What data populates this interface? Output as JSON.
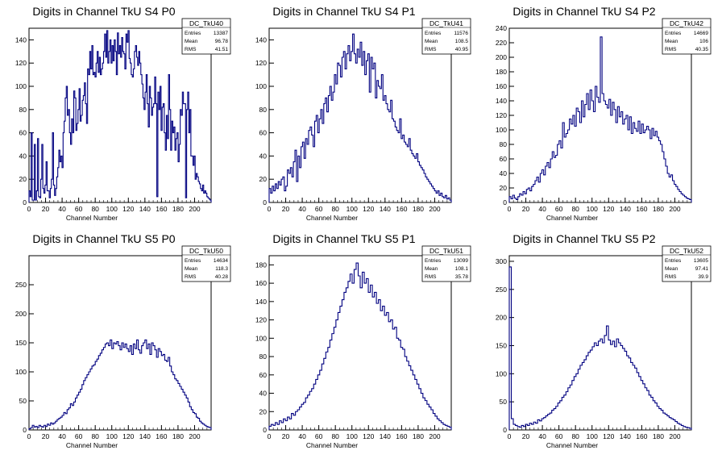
{
  "colors": {
    "histogram": "#000080",
    "axis": "#000000",
    "background": "#ffffff"
  },
  "chart_data": [
    {
      "type": "histogram",
      "title": "Digits in Channel TkU S4 P0",
      "xlabel": "Channel Number",
      "xlim": [
        0,
        220
      ],
      "ylim": [
        0,
        150
      ],
      "x_ticks": [
        0,
        20,
        40,
        60,
        80,
        100,
        120,
        140,
        160,
        180,
        200
      ],
      "y_ticks": [
        0,
        20,
        40,
        60,
        80,
        100,
        120,
        140
      ],
      "stats": {
        "name": "DC_TkU40",
        "entries": "13387",
        "mean": "96.78",
        "rms": "41.51"
      },
      "values": [
        10,
        5,
        60,
        2,
        2,
        50,
        2,
        10,
        55,
        5,
        4,
        20,
        50,
        12,
        8,
        15,
        35,
        10,
        10,
        4,
        12,
        20,
        60,
        15,
        6,
        12,
        22,
        30,
        45,
        35,
        40,
        30,
        60,
        70,
        90,
        100,
        75,
        80,
        60,
        50,
        72,
        60,
        96,
        90,
        62,
        68,
        80,
        98,
        70,
        75,
        88,
        92,
        103,
        85,
        68,
        115,
        110,
        130,
        115,
        135,
        110,
        112,
        108,
        120,
        130,
        112,
        125,
        110,
        115,
        120,
        130,
        145,
        125,
        148,
        120,
        130,
        140,
        120,
        135,
        122,
        140,
        130,
        110,
        146,
        128,
        135,
        125,
        142,
        130,
        128,
        115,
        145,
        138,
        148,
        124,
        120,
        110,
        108,
        115,
        130,
        135,
        125,
        118,
        130,
        120,
        110,
        102,
        90,
        80,
        95,
        110,
        85,
        65,
        100,
        90,
        75,
        82,
        85,
        108,
        85,
        5,
        95,
        80,
        100,
        62,
        82,
        85,
        60,
        45,
        75,
        55,
        110,
        80,
        45,
        70,
        60,
        65,
        45,
        55,
        60,
        35,
        50,
        80,
        75,
        95,
        85,
        85,
        4,
        80,
        95,
        60,
        80,
        40,
        40,
        32,
        40,
        20,
        25,
        22,
        18,
        16,
        12,
        10,
        15,
        8,
        10,
        8,
        5,
        4,
        3,
        2
      ]
    },
    {
      "type": "histogram",
      "title": "Digits in Channel TkU S4 P1",
      "xlabel": "Channel Number",
      "xlim": [
        0,
        220
      ],
      "ylim": [
        0,
        150
      ],
      "x_ticks": [
        0,
        20,
        40,
        60,
        80,
        100,
        120,
        140,
        160,
        180,
        200
      ],
      "y_ticks": [
        0,
        20,
        40,
        60,
        80,
        100,
        120,
        140
      ],
      "stats": {
        "name": "DC_TkU41",
        "entries": "11576",
        "mean": "108.5",
        "rms": "40.95"
      },
      "values": [
        12,
        8,
        14,
        10,
        16,
        12,
        18,
        15,
        20,
        22,
        10,
        14,
        28,
        25,
        30,
        22,
        35,
        45,
        18,
        40,
        30,
        48,
        52,
        38,
        55,
        50,
        62,
        65,
        58,
        48,
        70,
        75,
        60,
        72,
        80,
        68,
        85,
        90,
        78,
        92,
        100,
        88,
        95,
        110,
        102,
        120,
        118,
        108,
        125,
        130,
        115,
        128,
        135,
        122,
        130,
        145,
        128,
        120,
        132,
        125,
        138,
        118,
        130,
        110,
        122,
        128,
        95,
        125,
        115,
        120,
        90,
        105,
        100,
        98,
        110,
        88,
        92,
        85,
        80,
        78,
        88,
        72,
        70,
        65,
        62,
        60,
        72,
        55,
        58,
        52,
        50,
        48,
        55,
        45,
        42,
        40,
        38,
        42,
        35,
        32,
        30,
        28,
        25,
        22,
        20,
        18,
        16,
        14,
        12,
        10,
        8,
        10,
        6,
        8,
        5,
        4,
        6,
        3,
        4,
        2
      ]
    },
    {
      "type": "histogram",
      "title": "Digits in Channel TkU S4 P2",
      "xlabel": "Channel Number",
      "xlim": [
        0,
        220
      ],
      "ylim": [
        0,
        240
      ],
      "x_ticks": [
        0,
        20,
        40,
        60,
        80,
        100,
        120,
        140,
        160,
        180,
        200
      ],
      "y_ticks": [
        0,
        20,
        40,
        60,
        80,
        100,
        120,
        140,
        160,
        180,
        200,
        220,
        240
      ],
      "stats": {
        "name": "DC_TkU42",
        "entries": "14669",
        "mean": "106",
        "rms": "40.35"
      },
      "values": [
        8,
        5,
        10,
        6,
        4,
        8,
        12,
        10,
        15,
        12,
        18,
        20,
        16,
        22,
        25,
        30,
        35,
        28,
        40,
        45,
        38,
        50,
        55,
        48,
        60,
        70,
        62,
        65,
        80,
        85,
        75,
        110,
        90,
        95,
        100,
        115,
        108,
        120,
        105,
        130,
        125,
        110,
        140,
        118,
        135,
        150,
        128,
        155,
        140,
        125,
        160,
        145,
        138,
        228,
        150,
        140,
        135,
        130,
        142,
        120,
        138,
        128,
        110,
        132,
        118,
        125,
        108,
        115,
        120,
        100,
        118,
        95,
        110,
        102,
        98,
        112,
        95,
        108,
        96,
        100,
        105,
        100,
        88,
        102,
        92,
        98,
        90,
        85,
        80,
        70,
        60,
        50,
        40,
        35,
        38,
        30,
        25,
        22,
        18,
        15,
        12,
        10,
        8,
        6,
        5,
        4
      ]
    },
    {
      "type": "histogram",
      "title": "Digits in Channel TkU S5 P0",
      "xlabel": "Channel Number",
      "xlim": [
        0,
        220
      ],
      "ylim": [
        0,
        300
      ],
      "x_ticks": [
        0,
        20,
        40,
        60,
        80,
        100,
        120,
        140,
        160,
        180,
        200
      ],
      "y_ticks": [
        0,
        50,
        100,
        150,
        200,
        250
      ],
      "stats": {
        "name": "DC_TkU50",
        "entries": "14634",
        "mean": "118.3",
        "rms": "40.28"
      },
      "values": [
        2,
        4,
        8,
        5,
        6,
        4,
        8,
        6,
        5,
        8,
        6,
        10,
        8,
        12,
        10,
        12,
        15,
        18,
        20,
        22,
        25,
        30,
        28,
        35,
        38,
        45,
        42,
        48,
        55,
        60,
        65,
        70,
        78,
        85,
        90,
        95,
        100,
        105,
        110,
        112,
        118,
        122,
        128,
        132,
        138,
        142,
        148,
        150,
        145,
        155,
        140,
        150,
        148,
        152,
        145,
        138,
        150,
        142,
        148,
        140,
        135,
        145,
        130,
        148,
        140,
        155,
        138,
        132,
        145,
        150,
        155,
        140,
        148,
        130,
        150,
        145,
        138,
        125,
        140,
        135,
        128,
        130,
        120,
        118,
        125,
        110,
        100,
        95,
        88,
        85,
        80,
        75,
        70,
        65,
        60,
        55,
        48,
        40,
        35,
        30,
        28,
        22,
        20,
        15,
        12,
        10,
        8,
        6,
        5,
        4
      ]
    },
    {
      "type": "histogram",
      "title": "Digits in Channel TkU S5 P1",
      "xlabel": "Channel Number",
      "xlim": [
        0,
        220
      ],
      "ylim": [
        0,
        190
      ],
      "x_ticks": [
        0,
        20,
        40,
        60,
        80,
        100,
        120,
        140,
        160,
        180,
        200
      ],
      "y_ticks": [
        0,
        20,
        40,
        60,
        80,
        100,
        120,
        140,
        160,
        180
      ],
      "stats": {
        "name": "DC_TkU51",
        "entries": "13099",
        "mean": "108.1",
        "rms": "35.78"
      },
      "values": [
        4,
        6,
        5,
        8,
        6,
        10,
        8,
        12,
        10,
        14,
        12,
        18,
        16,
        20,
        22,
        25,
        28,
        30,
        35,
        38,
        42,
        45,
        50,
        55,
        60,
        65,
        72,
        78,
        85,
        90,
        98,
        105,
        112,
        120,
        128,
        135,
        142,
        150,
        155,
        162,
        170,
        160,
        175,
        182,
        168,
        155,
        172,
        160,
        165,
        150,
        158,
        145,
        150,
        138,
        142,
        130,
        135,
        125,
        128,
        118,
        120,
        110,
        112,
        100,
        98,
        90,
        88,
        80,
        75,
        70,
        65,
        60,
        55,
        50,
        45,
        40,
        35,
        32,
        28,
        25,
        22,
        18,
        15,
        12,
        10,
        8,
        6,
        5,
        4,
        3
      ]
    },
    {
      "type": "histogram",
      "title": "Digits in Channel TkU S5 P2",
      "xlabel": "Channel Number",
      "xlim": [
        0,
        220
      ],
      "ylim": [
        0,
        310
      ],
      "x_ticks": [
        0,
        20,
        40,
        60,
        80,
        100,
        120,
        140,
        160,
        180,
        200
      ],
      "y_ticks": [
        0,
        50,
        100,
        150,
        200,
        250,
        300
      ],
      "stats": {
        "name": "DC_TkU52",
        "entries": "13605",
        "mean": "97.41",
        "rms": "39.9"
      },
      "values": [
        290,
        20,
        10,
        8,
        6,
        5,
        8,
        6,
        10,
        8,
        12,
        10,
        14,
        12,
        18,
        16,
        20,
        22,
        25,
        28,
        30,
        35,
        38,
        42,
        48,
        52,
        58,
        62,
        68,
        75,
        80,
        88,
        95,
        100,
        108,
        115,
        120,
        125,
        132,
        138,
        142,
        148,
        155,
        150,
        158,
        162,
        155,
        168,
        185,
        160,
        152,
        158,
        148,
        162,
        155,
        150,
        145,
        140,
        132,
        128,
        120,
        115,
        110,
        102,
        95,
        88,
        82,
        75,
        70,
        62,
        58,
        52,
        48,
        42,
        38,
        35,
        30,
        28,
        25,
        22,
        20,
        18,
        15,
        12,
        10,
        8,
        6,
        5,
        4,
        3
      ]
    }
  ]
}
